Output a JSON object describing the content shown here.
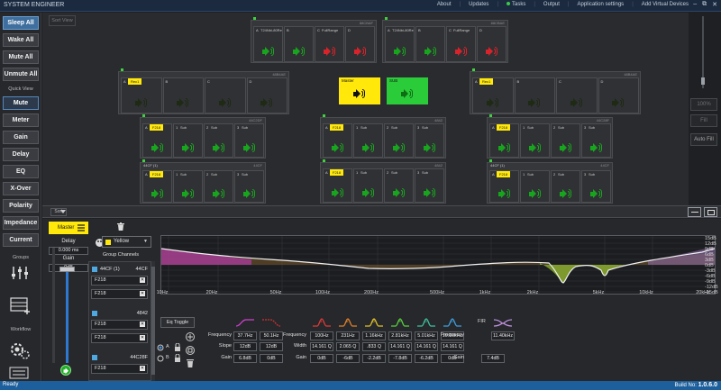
{
  "window": {
    "title": "SYSTEM ENGINEER",
    "menu": [
      "About",
      "Updates",
      "Tasks",
      "Output",
      "Application settings",
      "Add Virtual Devices"
    ],
    "controls": [
      "–",
      "⧉",
      "✕"
    ]
  },
  "left_panel": {
    "top_buttons": [
      "Sleep All",
      "Wake All",
      "Mute All",
      "Unmute All"
    ],
    "quick_view_label": "Quick View",
    "quick_view": [
      "Mute",
      "Meter",
      "Gain",
      "Delay",
      "EQ",
      "X-Over",
      "Polarity",
      "Impedance",
      "Current"
    ],
    "groups_label": "Groups",
    "workflow_label": "Workflow"
  },
  "overview": {
    "sort_view": "Sort View",
    "colors": {
      "active_green": "#18a51e",
      "muted_red": "#d8232a",
      "highlight_yellow": "#ffe80a"
    },
    "groups": [
      {
        "name": "88CBAF",
        "slots": [
          {
            "letter": "A",
            "label": "T24Nbi-80Re",
            "state": "green"
          },
          {
            "letter": "B",
            "label": "",
            "state": "green"
          },
          {
            "letter": "C",
            "label": "FullRange",
            "state": "red"
          },
          {
            "letter": "D",
            "label": "",
            "state": "red"
          }
        ]
      },
      {
        "name": "88CBAE",
        "slots": [
          {
            "letter": "A",
            "label": "T24Nbi-80Re",
            "state": "green"
          },
          {
            "letter": "B",
            "label": "",
            "state": "green"
          },
          {
            "letter": "C",
            "label": "FullRange",
            "state": "red"
          },
          {
            "letter": "D",
            "label": "",
            "state": "red"
          }
        ]
      },
      {
        "name": "48B4AE",
        "slots": [
          {
            "letter": "A",
            "label": "Rec1",
            "state": "dark"
          },
          {
            "letter": "B",
            "label": "",
            "state": "dark"
          },
          {
            "letter": "C",
            "label": "",
            "state": "dark"
          },
          {
            "letter": "D",
            "label": "",
            "state": "dark"
          }
        ]
      },
      {
        "name": "48B4AE",
        "slots": [
          {
            "letter": "A",
            "label": "Rec1",
            "state": "dark"
          },
          {
            "letter": "B",
            "label": "",
            "state": "dark"
          },
          {
            "letter": "C",
            "label": "",
            "state": "dark"
          },
          {
            "letter": "D",
            "label": "",
            "state": "dark"
          }
        ]
      },
      {
        "name": "44C2DF",
        "slots": [
          {
            "letter": "A",
            "label": "F218",
            "state": "green"
          },
          {
            "letter": "1",
            "label": "Sub",
            "state": "green"
          },
          {
            "letter": "2",
            "label": "Sub",
            "state": "green"
          },
          {
            "letter": "3",
            "label": "Sub",
            "state": "green"
          }
        ]
      },
      {
        "name": "4842",
        "slots": [
          {
            "letter": "A",
            "label": "F218",
            "state": "green"
          },
          {
            "letter": "1",
            "label": "Sub",
            "state": "green"
          },
          {
            "letter": "2",
            "label": "Sub",
            "state": "green"
          },
          {
            "letter": "3",
            "label": "Sub",
            "state": "green"
          }
        ]
      },
      {
        "name": "44C28F",
        "slots": [
          {
            "letter": "A",
            "label": "F218",
            "state": "green"
          },
          {
            "letter": "1",
            "label": "Sub",
            "state": "green"
          },
          {
            "letter": "2",
            "label": "Sub",
            "state": "green"
          },
          {
            "letter": "3",
            "label": "Sub",
            "state": "green"
          }
        ]
      },
      {
        "name": "44CF",
        "title": "44CF (1)",
        "slots": [
          {
            "letter": "A",
            "label": "F218",
            "state": "green"
          },
          {
            "letter": "1",
            "label": "Sub",
            "state": "green"
          },
          {
            "letter": "2",
            "label": "Sub",
            "state": "green"
          },
          {
            "letter": "3",
            "label": "Sub",
            "state": "green"
          }
        ]
      },
      {
        "name": "4842",
        "slots": [
          {
            "letter": "A",
            "label": "F218",
            "state": "green"
          },
          {
            "letter": "1",
            "label": "Sub",
            "state": "green"
          },
          {
            "letter": "2",
            "label": "Sub",
            "state": "green"
          },
          {
            "letter": "3",
            "label": "Sub",
            "state": "green"
          }
        ]
      },
      {
        "name": "44CF",
        "title": "44CF (1)",
        "slots": [
          {
            "letter": "A",
            "label": "F218",
            "state": "green"
          },
          {
            "letter": "1",
            "label": "Sub",
            "state": "green"
          },
          {
            "letter": "2",
            "label": "Sub",
            "state": "green"
          },
          {
            "letter": "3",
            "label": "Sub",
            "state": "green"
          }
        ]
      }
    ],
    "master_button": "Master",
    "sub_button": "SUB"
  },
  "right_panel": {
    "zoom": "100%",
    "fill": "Fill",
    "auto_fill": "Auto Fill"
  },
  "toolbar": {
    "sort": "Sort"
  },
  "master": {
    "label": "Master",
    "delay_label": "Delay",
    "delay_value": "0.000 ms",
    "gain_label": "Gain",
    "gain_value": "0dB"
  },
  "group_channels": {
    "color_select": "Yellow",
    "label": "Group Channels",
    "entries": [
      {
        "header": "44CF (1)",
        "right": "44CF",
        "items": [
          "F218",
          "F218"
        ]
      },
      {
        "header": "",
        "right": "4842",
        "items": [
          "F218",
          "F218"
        ]
      },
      {
        "header": "",
        "right": "44C28F",
        "items": [
          "F218"
        ]
      }
    ]
  },
  "eq": {
    "x_ticks": [
      "10Hz",
      "20Hz",
      "50Hz",
      "100Hz",
      "200Hz",
      "500Hz",
      "1kHz",
      "2kHz",
      "5kHz",
      "10kHz",
      "20kHz"
    ],
    "y_ticks": [
      "15dB",
      "12dB",
      "9dB",
      "6dB",
      "3dB",
      "0dB",
      "-3dB",
      "-6dB",
      "-9dB",
      "-12dB",
      "-15dB"
    ],
    "toggle": "Eq Toggle",
    "ab": [
      "A",
      "B"
    ],
    "row_labels": {
      "frequency": "Frequency",
      "slope": "Slope",
      "gain": "Gain",
      "width": "Width"
    },
    "crossover": [
      {
        "frequency": "37.7Hz",
        "slope": "12dB",
        "gain": "6.8dB",
        "color": "#d23fd2"
      },
      {
        "frequency": "50.1Hz",
        "slope": "12dB",
        "gain": "0dB",
        "color": "#d23030"
      }
    ],
    "bands": [
      {
        "num": "1",
        "frequency": "100Hz",
        "width": "14.161 Q",
        "gain": "0dB",
        "color": "#e03a3a"
      },
      {
        "num": "2",
        "frequency": "231Hz",
        "width": "2.065 Q",
        "gain": "-6dB",
        "color": "#e0802a"
      },
      {
        "num": "3",
        "frequency": "1.16kHz",
        "width": ".833 Q",
        "gain": "-2.2dB",
        "color": "#e0c02a"
      },
      {
        "num": "4",
        "frequency": "2.81kHz",
        "width": "14.161 Q",
        "gain": "-7.8dB",
        "color": "#5ad040"
      },
      {
        "num": "5",
        "frequency": "5.01kHz",
        "width": "14.161 Q",
        "gain": "-6.2dB",
        "color": "#40c0a0"
      },
      {
        "num": "6",
        "frequency": "10.00kHz",
        "width": "14.161 Q",
        "gain": "0dB",
        "color": "#40a0e0"
      }
    ],
    "fir": {
      "label": "FIR",
      "frequency": "11.40kHz",
      "gain": "7.4dB",
      "color": "#c090e0"
    }
  },
  "status": {
    "ready": "Ready",
    "build_label": "Build No:",
    "build_no": "1.0.6.0"
  }
}
